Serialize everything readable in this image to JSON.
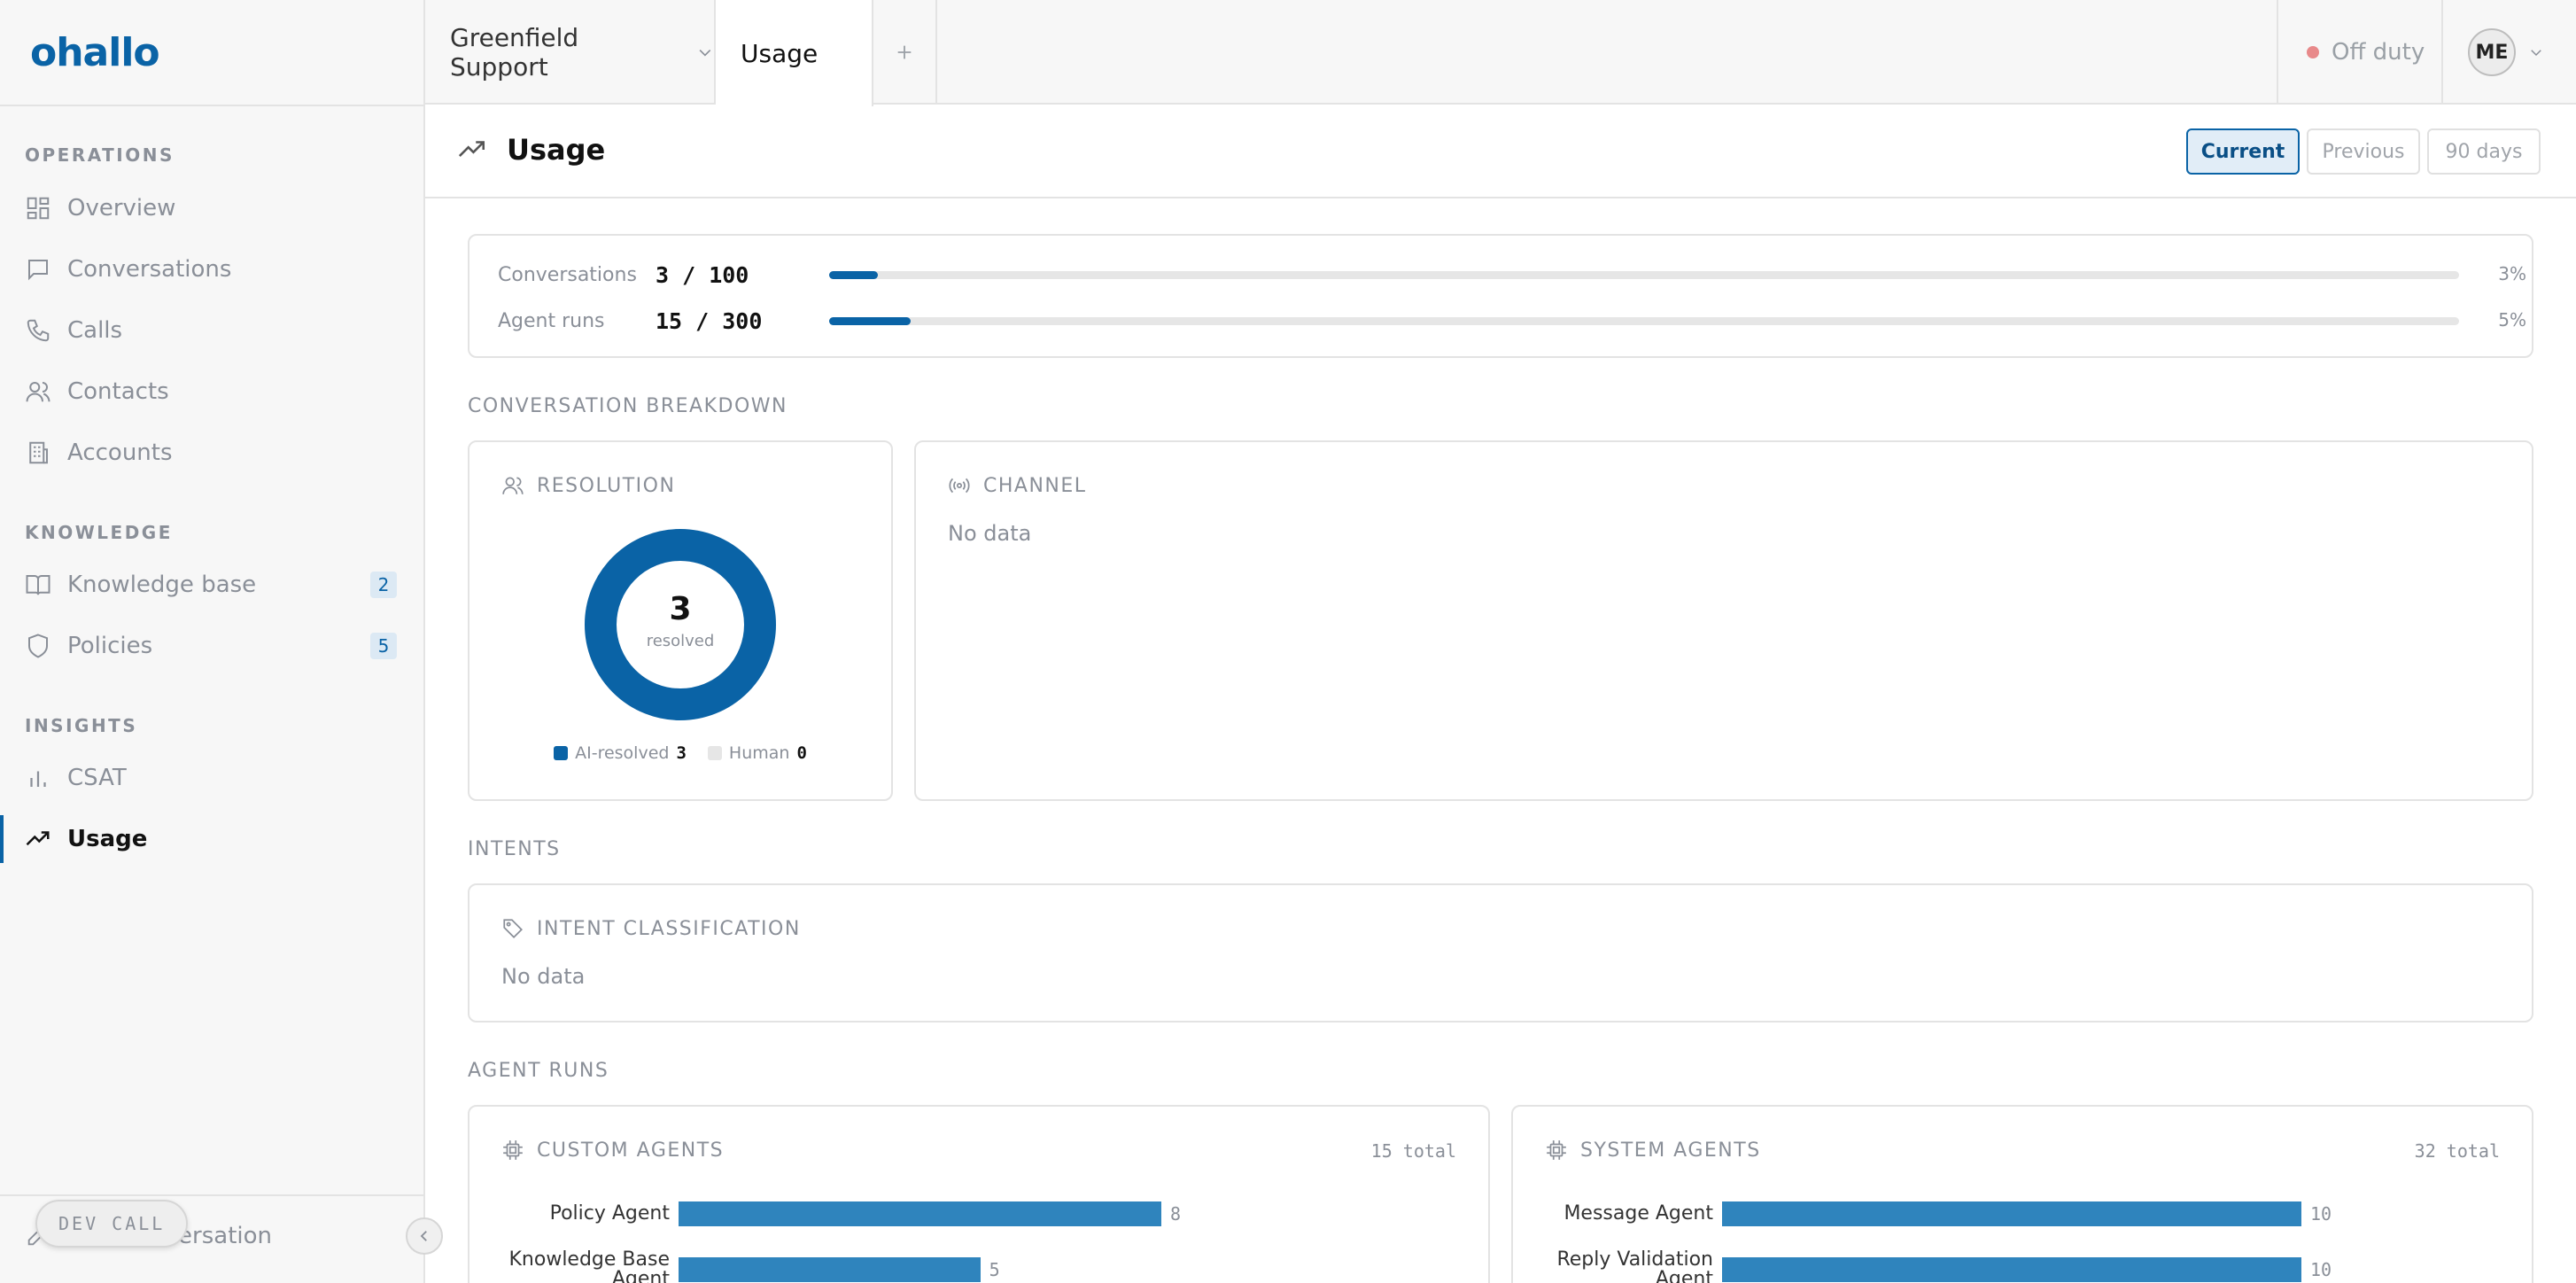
{
  "brand": {
    "logo_text": "ohallo",
    "accent": "#0a63a6"
  },
  "topbar": {
    "workspace": "Greenfield Support",
    "active_tab": "Usage",
    "status": "Off duty",
    "status_color": "#e8898a",
    "avatar_initials": "ME"
  },
  "sidebar": {
    "sections": [
      {
        "title": "OPERATIONS",
        "items": [
          {
            "label": "Overview",
            "icon": "grid-icon"
          },
          {
            "label": "Conversations",
            "icon": "chat-bubble-icon"
          },
          {
            "label": "Calls",
            "icon": "phone-icon"
          },
          {
            "label": "Contacts",
            "icon": "users-icon"
          },
          {
            "label": "Accounts",
            "icon": "building-icon"
          }
        ]
      },
      {
        "title": "KNOWLEDGE",
        "items": [
          {
            "label": "Knowledge base",
            "icon": "book-icon",
            "badge": "2"
          },
          {
            "label": "Policies",
            "icon": "shield-icon",
            "badge": "5"
          }
        ]
      },
      {
        "title": "INSIGHTS",
        "items": [
          {
            "label": "CSAT",
            "icon": "bar-chart-icon"
          },
          {
            "label": "Usage",
            "icon": "trending-up-icon",
            "active": true
          }
        ]
      }
    ],
    "new_conversation": "New conversation",
    "dev_call": "DEV CALL"
  },
  "page": {
    "title": "Usage",
    "periods": [
      {
        "label": "Current",
        "active": true
      },
      {
        "label": "Previous",
        "active": false
      },
      {
        "label": "90 days",
        "active": false
      }
    ]
  },
  "quotas": [
    {
      "label": "Conversations",
      "value": "3 / 100",
      "percent_text": "3%",
      "fraction": 0.03
    },
    {
      "label": "Agent runs",
      "value": "15 / 300",
      "percent_text": "5%",
      "fraction": 0.05
    }
  ],
  "breakdown": {
    "section_title": "CONVERSATION BREAKDOWN",
    "resolution": {
      "title": "RESOLUTION",
      "center_value": "3",
      "center_label": "resolved",
      "legend": [
        {
          "label": "AI-resolved",
          "value": "3",
          "color": "#0a63a6"
        },
        {
          "label": "Human",
          "value": "0",
          "color": "#e6e6e6"
        }
      ]
    },
    "channel": {
      "title": "CHANNEL",
      "empty_text": "No data"
    }
  },
  "intents": {
    "section_title": "INTENTS",
    "card_title": "INTENT CLASSIFICATION",
    "empty_text": "No data"
  },
  "agent_runs": {
    "section_title": "AGENT RUNS",
    "custom": {
      "title": "CUSTOM AGENTS",
      "total": "15 total"
    },
    "system": {
      "title": "SYSTEM AGENTS",
      "total": "32 total"
    }
  },
  "chart_data": [
    {
      "type": "pie",
      "title": "RESOLUTION",
      "categories": [
        "AI-resolved",
        "Human"
      ],
      "values": [
        3,
        0
      ]
    },
    {
      "type": "bar",
      "title": "CUSTOM AGENTS",
      "categories": [
        "Policy Agent",
        "Knowledge Base Agent"
      ],
      "values": [
        8,
        5
      ]
    },
    {
      "type": "bar",
      "title": "SYSTEM AGENTS",
      "categories": [
        "Message Agent",
        "Reply Validation Agent"
      ],
      "values": [
        10,
        10
      ]
    }
  ]
}
